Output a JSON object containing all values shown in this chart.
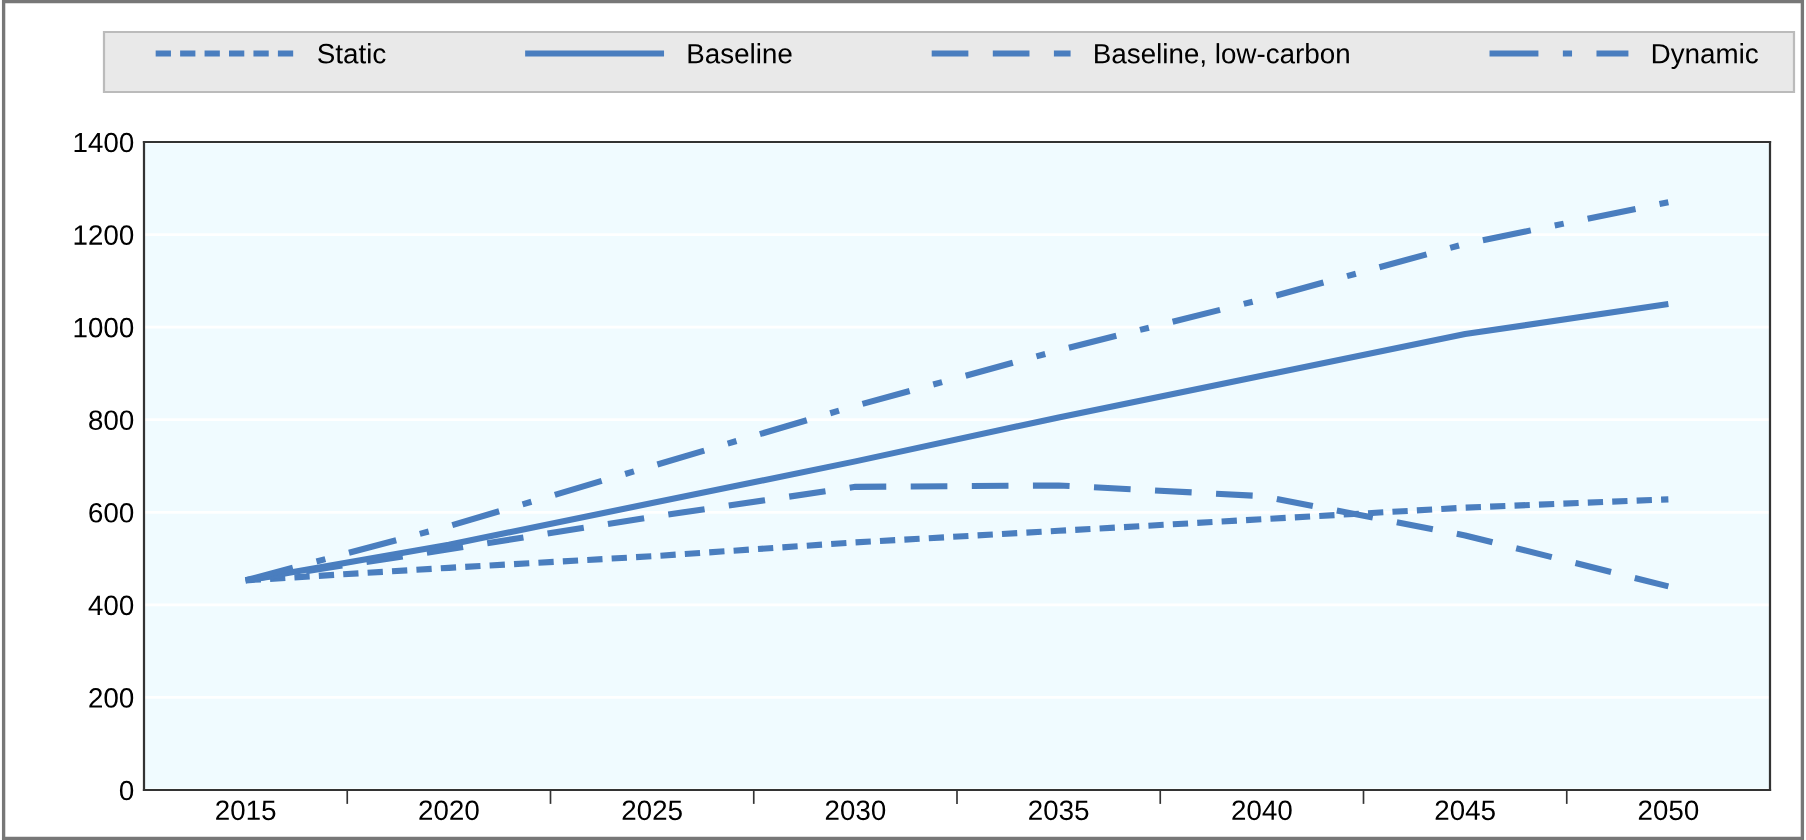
{
  "chart_data": {
    "type": "line",
    "categories": [
      "2015",
      "2020",
      "2025",
      "2030",
      "2035",
      "2040",
      "2045",
      "2050"
    ],
    "series": [
      {
        "name": "Static",
        "color": "#4a7ebf",
        "line_style": "dotted",
        "values": [
          453,
          480,
          505,
          535,
          560,
          585,
          610,
          628
        ]
      },
      {
        "name": "Baseline",
        "color": "#4a7ebf",
        "line_style": "solid",
        "values": [
          453,
          530,
          620,
          710,
          805,
          895,
          985,
          1050
        ]
      },
      {
        "name": "Baseline, low-carbon",
        "color": "#4a7ebf",
        "line_style": "dashed",
        "values": [
          453,
          520,
          590,
          655,
          658,
          635,
          550,
          440
        ]
      },
      {
        "name": "Dynamic",
        "color": "#4a7ebf",
        "line_style": "dashdot",
        "values": [
          453,
          570,
          700,
          830,
          950,
          1060,
          1180,
          1270
        ]
      }
    ],
    "ylim": [
      0,
      1400
    ],
    "yticks": [
      0,
      200,
      400,
      600,
      800,
      1000,
      1200,
      1400
    ],
    "grid": "y",
    "legend": "top",
    "marker": "none"
  }
}
